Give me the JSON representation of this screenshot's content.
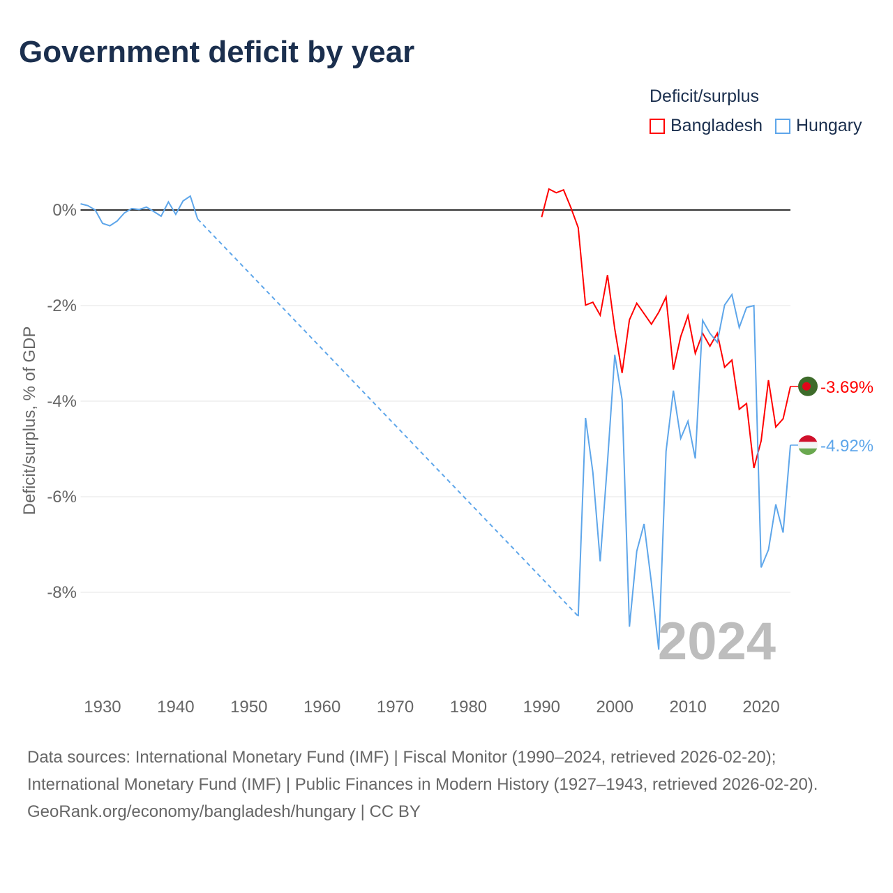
{
  "title": "Government deficit by year",
  "legend": {
    "title": "Deficit/surplus",
    "items": [
      {
        "name": "Bangladesh",
        "color": "#ff0000"
      },
      {
        "name": "Hungary",
        "color": "#5ea6ea"
      }
    ]
  },
  "footer": {
    "sources": "Data sources: International Monetary Fund (IMF) | Fiscal Monitor (1990–2024, retrieved 2026-02-20); International Monetary Fund (IMF) | Public Finances in Modern History (1927–1943, retrieved 2026-02-20).",
    "credit": "GeoRank.org/economy/bangladesh/hungary | CC BY"
  },
  "chart_data": {
    "type": "line",
    "title": "Government deficit by year",
    "xlabel": "",
    "ylabel": "Deficit/surplus, % of GDP",
    "xlim": [
      1927,
      2024
    ],
    "ylim": [
      -10,
      1.2
    ],
    "xticks": [
      1930,
      1940,
      1950,
      1960,
      1970,
      1980,
      1990,
      2000,
      2010,
      2020
    ],
    "yticks": [
      {
        "v": 0,
        "label": "0%"
      },
      {
        "v": -2,
        "label": "-2%"
      },
      {
        "v": -4,
        "label": "-4%"
      },
      {
        "v": -6,
        "label": "-6%"
      },
      {
        "v": -8,
        "label": "-8%"
      }
    ],
    "year_watermark": "2024",
    "series": [
      {
        "name": "Bangladesh",
        "color": "#ff0000",
        "end_label": "-3.69%",
        "x": [
          1990,
          1991,
          1992,
          1993,
          1994,
          1995,
          1996,
          1997,
          1998,
          1999,
          2000,
          2001,
          2002,
          2003,
          2004,
          2005,
          2006,
          2007,
          2008,
          2009,
          2010,
          2011,
          2012,
          2013,
          2014,
          2015,
          2016,
          2017,
          2018,
          2019,
          2020,
          2021,
          2022,
          2023,
          2024
        ],
        "y": [
          -0.15,
          0.44,
          0.36,
          0.42,
          0.05,
          -0.37,
          -1.99,
          -1.93,
          -2.2,
          -1.36,
          -2.49,
          -3.41,
          -2.3,
          -1.95,
          -2.17,
          -2.39,
          -2.14,
          -1.82,
          -3.34,
          -2.65,
          -2.21,
          -3.0,
          -2.58,
          -2.85,
          -2.58,
          -3.29,
          -3.14,
          -4.17,
          -4.05,
          -5.4,
          -4.83,
          -3.56,
          -4.54,
          -4.37,
          -3.69
        ]
      },
      {
        "name": "Hungary",
        "color": "#5ea6ea",
        "end_label": "-4.92%",
        "x": [
          1927,
          1928,
          1929,
          1930,
          1931,
          1932,
          1933,
          1934,
          1935,
          1936,
          1937,
          1938,
          1939,
          1940,
          1941,
          1942,
          1943,
          1995,
          1996,
          1997,
          1998,
          1999,
          2000,
          2001,
          2002,
          2003,
          2004,
          2005,
          2006,
          2007,
          2008,
          2009,
          2010,
          2011,
          2012,
          2013,
          2014,
          2015,
          2016,
          2017,
          2018,
          2019,
          2020,
          2021,
          2022,
          2023,
          2024
        ],
        "y": [
          0.13,
          0.09,
          0,
          -0.28,
          -0.33,
          -0.23,
          -0.06,
          0.03,
          0.01,
          0.06,
          -0.03,
          -0.13,
          0.17,
          -0.09,
          0.19,
          0.29,
          -0.19,
          -8.5,
          -4.35,
          -5.49,
          -7.35,
          -5.27,
          -3.03,
          -3.97,
          -8.72,
          -7.14,
          -6.57,
          -7.8,
          -9.2,
          -5.05,
          -3.78,
          -4.78,
          -4.42,
          -5.2,
          -2.31,
          -2.58,
          -2.77,
          -1.99,
          -1.77,
          -2.46,
          -2.04,
          -2.0,
          -7.48,
          -7.11,
          -6.16,
          -6.75,
          -4.92
        ]
      }
    ]
  }
}
